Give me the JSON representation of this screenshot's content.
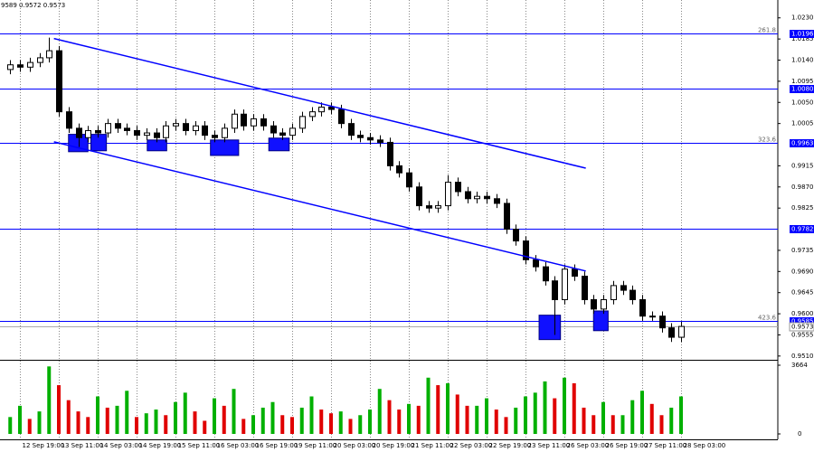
{
  "chart_data": {
    "type": "candlestick",
    "header": "9589 0.9572 0.9573",
    "categories": [
      null,
      "12 Sep 19:00",
      null,
      null,
      null,
      "13 Sep 11:00",
      null,
      null,
      null,
      "14 Sep 03:00",
      null,
      null,
      null,
      "14 Sep 19:00",
      null,
      null,
      null,
      "15 Sep 11:00",
      null,
      null,
      null,
      "16 Sep 03:00",
      null,
      null,
      null,
      "16 Sep 19:00",
      null,
      null,
      null,
      "19 Sep 11:00",
      null,
      null,
      null,
      "20 Sep 03:00",
      null,
      null,
      null,
      "20 Sep 19:00",
      null,
      null,
      null,
      "21 Sep 11:00",
      null,
      null,
      null,
      "22 Sep 03:00",
      null,
      null,
      null,
      "22 Sep 19:00",
      null,
      null,
      null,
      "23 Sep 11:00",
      null,
      null,
      null,
      "26 Sep 03:00",
      null,
      null,
      null,
      "26 Sep 19:00",
      null,
      null,
      null,
      "27 Sep 11:00",
      null,
      null,
      null,
      "28 Sep 03:00"
    ],
    "open": [
      1.012,
      1.013,
      1.0125,
      1.0135,
      1.0145,
      1.016,
      1.003,
      0.9995,
      0.9975,
      0.999,
      0.9985,
      1.0005,
      0.9995,
      0.999,
      0.998,
      0.9985,
      0.9975,
      1.0,
      1.0005,
      0.999,
      1.0,
      0.998,
      0.9975,
      0.9995,
      1.0025,
      1.0,
      1.0015,
      1.0,
      0.9985,
      0.998,
      0.9995,
      1.002,
      1.003,
      1.004,
      1.0035,
      1.0005,
      0.998,
      0.9975,
      0.997,
      0.9965,
      0.9915,
      0.99,
      0.987,
      0.983,
      0.9825,
      0.983,
      0.988,
      0.986,
      0.9845,
      0.985,
      0.9845,
      0.9835,
      0.978,
      0.9755,
      0.9715,
      0.97,
      0.967,
      0.963,
      0.9695,
      0.968,
      0.963,
      0.961,
      0.963,
      0.966,
      0.965,
      0.963,
      0.9595,
      0.9595,
      0.957,
      0.955
    ],
    "high": [
      1.014,
      1.014,
      1.0145,
      1.0155,
      1.0188,
      1.017,
      1.004,
      1.0005,
      1.0,
      1.0,
      1.0015,
      1.0015,
      1.0005,
      1.0,
      0.9995,
      0.9995,
      1.001,
      1.0015,
      1.0015,
      1.001,
      1.001,
      0.999,
      1.0005,
      1.0035,
      1.0035,
      1.0025,
      1.0025,
      1.001,
      0.9995,
      1.0005,
      1.003,
      1.004,
      1.005,
      1.005,
      1.0045,
      1.0015,
      0.999,
      0.9985,
      0.998,
      0.9975,
      0.9925,
      0.991,
      0.988,
      0.984,
      0.984,
      0.9895,
      0.989,
      0.987,
      0.986,
      0.986,
      0.9855,
      0.9845,
      0.979,
      0.9765,
      0.9725,
      0.971,
      0.968,
      0.9705,
      0.9705,
      0.969,
      0.964,
      0.964,
      0.967,
      0.967,
      0.966,
      0.964,
      0.9605,
      0.9605,
      0.958,
      0.9583
    ],
    "low": [
      1.011,
      1.0115,
      1.0115,
      1.0125,
      1.0135,
      1.002,
      0.9985,
      0.9955,
      0.9965,
      0.9975,
      0.9975,
      0.9985,
      0.998,
      0.997,
      0.997,
      0.9965,
      0.9965,
      0.999,
      0.998,
      0.998,
      0.997,
      0.9965,
      0.9965,
      0.9985,
      0.999,
      0.999,
      0.999,
      0.9975,
      0.997,
      0.997,
      0.9985,
      1.001,
      1.002,
      1.0025,
      0.9995,
      0.997,
      0.9965,
      0.996,
      0.9955,
      0.9905,
      0.989,
      0.986,
      0.982,
      0.9815,
      0.9815,
      0.982,
      0.985,
      0.9835,
      0.9835,
      0.9835,
      0.9825,
      0.977,
      0.9745,
      0.9705,
      0.969,
      0.966,
      0.9555,
      0.962,
      0.967,
      0.962,
      0.96,
      0.96,
      0.962,
      0.964,
      0.962,
      0.9585,
      0.9585,
      0.956,
      0.954,
      0.954
    ],
    "close": [
      1.013,
      1.0125,
      1.0135,
      1.0145,
      1.016,
      1.003,
      0.9995,
      0.9975,
      0.999,
      0.9985,
      1.0005,
      0.9995,
      0.999,
      0.998,
      0.9985,
      0.9975,
      1.0,
      1.0005,
      0.999,
      1.0,
      0.998,
      0.9975,
      0.9995,
      1.0025,
      1.0,
      1.0015,
      1.0,
      0.9985,
      0.998,
      0.9995,
      1.002,
      1.003,
      1.004,
      1.0035,
      1.0005,
      0.998,
      0.9975,
      0.997,
      0.9965,
      0.9915,
      0.99,
      0.987,
      0.983,
      0.9825,
      0.983,
      0.988,
      0.986,
      0.9845,
      0.985,
      0.9845,
      0.9835,
      0.978,
      0.9755,
      0.9715,
      0.97,
      0.967,
      0.963,
      0.9695,
      0.968,
      0.963,
      0.961,
      0.963,
      0.966,
      0.965,
      0.963,
      0.9595,
      0.9595,
      0.957,
      0.955,
      0.9573
    ],
    "ylim": [
      0.9502,
      1.0268
    ],
    "yticks": [
      {
        "value": 1.023,
        "label": "1.0230"
      },
      {
        "value": 1.0185,
        "label": "1.0185"
      },
      {
        "value": 1.014,
        "label": "1.0140"
      },
      {
        "value": 1.0095,
        "label": "1.0095"
      },
      {
        "value": 1.005,
        "label": "1.0050"
      },
      {
        "value": 1.0005,
        "label": "1.0005"
      },
      {
        "value": 0.9915,
        "label": "0.9915"
      },
      {
        "value": 0.987,
        "label": "0.9870"
      },
      {
        "value": 0.9825,
        "label": "0.9825"
      },
      {
        "value": 0.9735,
        "label": "0.9735"
      },
      {
        "value": 0.969,
        "label": "0.9690"
      },
      {
        "value": 0.9645,
        "label": "0.9645"
      },
      {
        "value": 0.96,
        "label": "0.9600"
      },
      {
        "value": 0.9555,
        "label": "0.9555"
      },
      {
        "value": 0.951,
        "label": "0.9510"
      }
    ],
    "levels": [
      {
        "value": 1.0196,
        "label": "1.0196",
        "fib": "261.8"
      },
      {
        "value": 1.008,
        "label": "1.0080"
      },
      {
        "value": 0.9963,
        "label": "0.9963",
        "fib": "323.6"
      },
      {
        "value": 0.9782,
        "label": "0.9782"
      },
      {
        "value": 0.9585,
        "label": "0.9585",
        "fib": "423.6"
      }
    ],
    "bid": {
      "value": 0.9573,
      "label": "0.9573"
    },
    "trendlines": [
      {
        "x": [
          4.5,
          59.2
        ],
        "y": [
          1.0186,
          0.991
        ]
      },
      {
        "x": [
          4.5,
          59.2
        ],
        "y": [
          0.9966,
          0.9691
        ]
      }
    ],
    "zones": [
      {
        "x": [
          6.0,
          8.0
        ],
        "y": [
          0.9982,
          0.9945
        ]
      },
      {
        "x": [
          8.3,
          9.9
        ],
        "y": [
          0.9982,
          0.9947
        ]
      },
      {
        "x": [
          14.1,
          16.1
        ],
        "y": [
          0.997,
          0.9947
        ]
      },
      {
        "x": [
          20.6,
          23.5
        ],
        "y": [
          0.997,
          0.9937
        ]
      },
      {
        "x": [
          26.6,
          28.7
        ],
        "y": [
          0.9974,
          0.9947
        ]
      },
      {
        "x": [
          54.4,
          56.6
        ],
        "y": [
          0.9597,
          0.9545
        ]
      },
      {
        "x": [
          60.0,
          61.5
        ],
        "y": [
          0.9606,
          0.9564
        ]
      }
    ],
    "line_color": "#0000ff",
    "zone_color": "#1010ff",
    "grid": true,
    "volume": {
      "values": [
        900,
        1500,
        800,
        1200,
        3600,
        2600,
        1800,
        1200,
        900,
        2000,
        1400,
        1500,
        2300,
        900,
        1100,
        1300,
        1000,
        1700,
        2200,
        1200,
        700,
        1900,
        1500,
        2400,
        800,
        1000,
        1400,
        1700,
        1000,
        900,
        1400,
        2000,
        1300,
        1100,
        1200,
        800,
        1000,
        1300,
        2400,
        1800,
        1300,
        1600,
        1500,
        3000,
        2600,
        2700,
        2100,
        1500,
        1500,
        1900,
        1300,
        900,
        1400,
        2000,
        2200,
        2800,
        1900,
        3000,
        2700,
        1400,
        1000,
        1700,
        1000,
        1000,
        1800,
        2300,
        1600,
        1000,
        1400,
        2000
      ],
      "ylim": [
        0,
        3664
      ],
      "yticks": [
        3664,
        0
      ],
      "up_color": "#00b000",
      "down_color": "#e00000"
    }
  }
}
